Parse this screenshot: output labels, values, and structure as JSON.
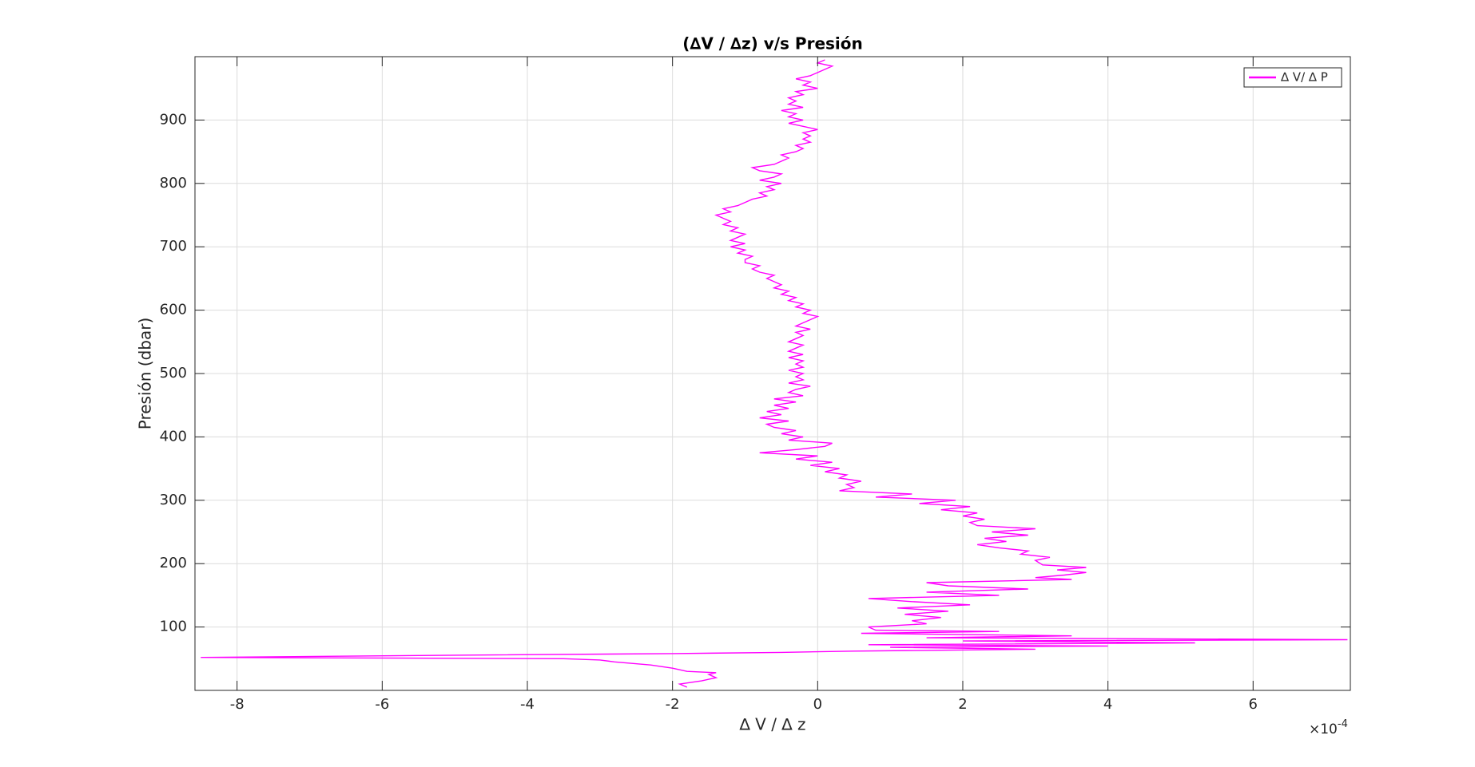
{
  "chart_data": {
    "type": "line",
    "title": "(∆V / ∆z) v/s Presión",
    "x_label": "∆ V / ∆ z",
    "y_label": "Presión (dbar)",
    "x_multiplier": {
      "base": "×10",
      "exponent": "-4"
    },
    "xlim": [
      -8.58,
      7.34
    ],
    "ylim": [
      0,
      1000
    ],
    "xticks": [
      -8,
      -6,
      -4,
      -2,
      0,
      2,
      4,
      6
    ],
    "yticks": [
      100,
      200,
      300,
      400,
      500,
      600,
      700,
      800,
      900
    ],
    "grid": true,
    "legend": "top-right",
    "series": [
      {
        "name": "∆ V/ ∆ P",
        "color": "#ff00ff",
        "x": [
          -1.8,
          -1.9,
          -1.6,
          -1.4,
          -1.5,
          -1.4,
          -1.8,
          -2.0,
          -2.3,
          -2.8,
          -3.0,
          -3.5,
          -8.5,
          -5.5,
          -2.0,
          -0.5,
          0.5,
          3.0,
          1.0,
          4.0,
          0.7,
          5.2,
          2.0,
          7.3,
          1.5,
          3.5,
          0.6,
          2.5,
          0.8,
          0.7,
          1.5,
          1.3,
          1.7,
          1.2,
          1.8,
          1.1,
          2.1,
          1.3,
          0.7,
          2.5,
          1.5,
          2.9,
          1.8,
          1.5,
          3.5,
          3.0,
          3.4,
          3.7,
          3.3,
          3.7,
          3.1,
          3.0,
          3.2,
          2.8,
          2.9,
          2.5,
          2.2,
          2.6,
          2.3,
          2.9,
          2.4,
          3.0,
          2.2,
          2.1,
          2.3,
          2.0,
          2.2,
          1.7,
          2.1,
          1.4,
          1.9,
          0.8,
          1.3,
          0.3,
          0.5,
          0.4,
          0.6,
          0.3,
          0.4,
          0.1,
          0.3,
          -0.1,
          0.2,
          -0.3,
          0.0,
          -0.8,
          -0.3,
          0.1,
          0.2,
          -0.4,
          -0.2,
          -0.5,
          -0.3,
          -0.6,
          -0.7,
          -0.4,
          -0.8,
          -0.5,
          -0.7,
          -0.4,
          -0.6,
          -0.3,
          -0.6,
          -0.2,
          -0.4,
          -0.3,
          -0.1,
          -0.4,
          -0.2,
          -0.3,
          -0.2,
          -0.4,
          -0.2,
          -0.3,
          -0.2,
          -0.4,
          -0.2,
          -0.4,
          -0.3,
          -0.2,
          -0.4,
          -0.3,
          -0.2,
          -0.3,
          -0.1,
          -0.3,
          -0.2,
          -0.1,
          0.0,
          -0.2,
          -0.1,
          -0.3,
          -0.2,
          -0.4,
          -0.3,
          -0.5,
          -0.4,
          -0.6,
          -0.5,
          -0.6,
          -0.7,
          -0.6,
          -0.8,
          -0.9,
          -0.8,
          -1.0,
          -1.0,
          -0.9,
          -1.1,
          -1.0,
          -1.2,
          -1.0,
          -1.2,
          -1.1,
          -1.0,
          -1.2,
          -1.1,
          -1.3,
          -1.2,
          -1.3,
          -1.4,
          -1.2,
          -1.3,
          -1.1,
          -1.0,
          -0.9,
          -0.7,
          -0.8,
          -0.6,
          -0.7,
          -0.5,
          -0.8,
          -0.6,
          -0.5,
          -0.8,
          -0.9,
          -0.6,
          -0.5,
          -0.4,
          -0.5,
          -0.3,
          -0.2,
          -0.3,
          -0.1,
          -0.2,
          -0.1,
          -0.2,
          0.0,
          -0.2,
          -0.4,
          -0.2,
          -0.4,
          -0.3,
          -0.5,
          -0.2,
          -0.4,
          -0.3,
          -0.4,
          -0.2,
          -0.3,
          0.0,
          -0.2,
          -0.1,
          -0.3,
          -0.1,
          0.0,
          0.1,
          0.2,
          0.0,
          0.1
        ],
        "y": [
          5,
          10,
          15,
          20,
          25,
          28,
          30,
          35,
          40,
          45,
          48,
          50,
          52,
          55,
          58,
          60,
          62,
          65,
          68,
          70,
          72,
          75,
          78,
          80,
          83,
          86,
          90,
          93,
          95,
          100,
          105,
          110,
          115,
          120,
          125,
          130,
          135,
          140,
          145,
          150,
          155,
          160,
          165,
          170,
          175,
          178,
          182,
          186,
          190,
          194,
          198,
          205,
          210,
          215,
          220,
          225,
          230,
          235,
          240,
          245,
          250,
          255,
          260,
          265,
          270,
          275,
          280,
          285,
          290,
          295,
          300,
          305,
          310,
          315,
          320,
          325,
          330,
          335,
          340,
          345,
          350,
          355,
          360,
          365,
          370,
          375,
          380,
          385,
          390,
          395,
          400,
          405,
          410,
          415,
          420,
          425,
          430,
          435,
          440,
          445,
          450,
          455,
          460,
          465,
          470,
          475,
          480,
          485,
          490,
          495,
          500,
          505,
          510,
          515,
          520,
          525,
          530,
          535,
          540,
          545,
          550,
          555,
          560,
          565,
          570,
          575,
          580,
          585,
          590,
          595,
          600,
          605,
          610,
          615,
          620,
          625,
          630,
          635,
          640,
          645,
          650,
          655,
          660,
          665,
          670,
          675,
          680,
          685,
          690,
          695,
          700,
          705,
          710,
          715,
          720,
          725,
          730,
          735,
          740,
          745,
          750,
          755,
          760,
          765,
          770,
          775,
          780,
          785,
          790,
          795,
          800,
          805,
          810,
          815,
          820,
          825,
          830,
          835,
          840,
          845,
          850,
          855,
          860,
          865,
          870,
          875,
          880,
          885,
          890,
          895,
          900,
          905,
          910,
          915,
          920,
          925,
          930,
          935,
          940,
          945,
          950,
          955,
          960,
          965,
          970,
          975,
          980,
          985,
          990,
          995
        ]
      }
    ]
  }
}
